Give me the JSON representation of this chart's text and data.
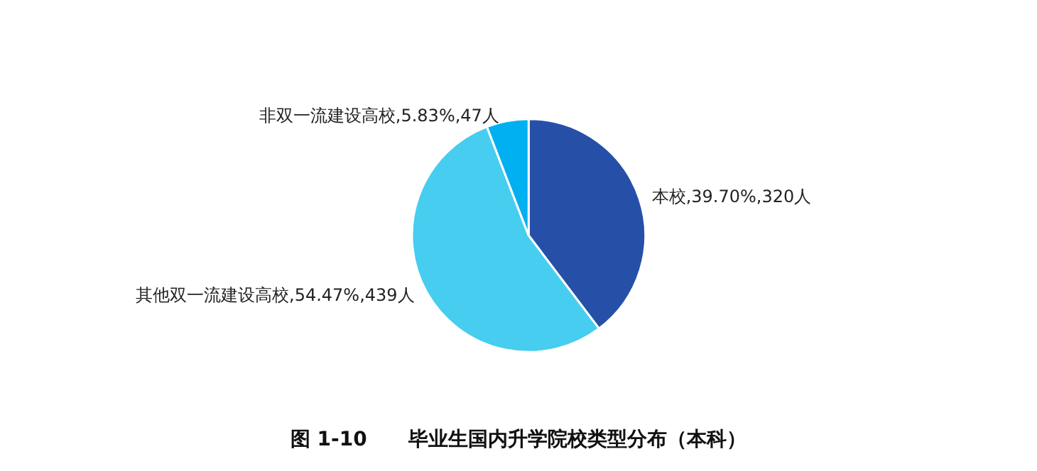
{
  "chart_data": {
    "type": "pie",
    "title": "图 1-10      毕业生国内升学院校类型分布（本科）",
    "categories": [
      "本校",
      "其他双一流建设高校",
      "非双一流建设高校"
    ],
    "values": [
      320,
      439,
      47
    ],
    "value_labels": [
      "39.70%,320人",
      "54.47%,439人",
      "5.83%,47人"
    ],
    "colors": [
      "#2650a8",
      "#47cdf0",
      "#00b0f0"
    ],
    "legend": false
  }
}
